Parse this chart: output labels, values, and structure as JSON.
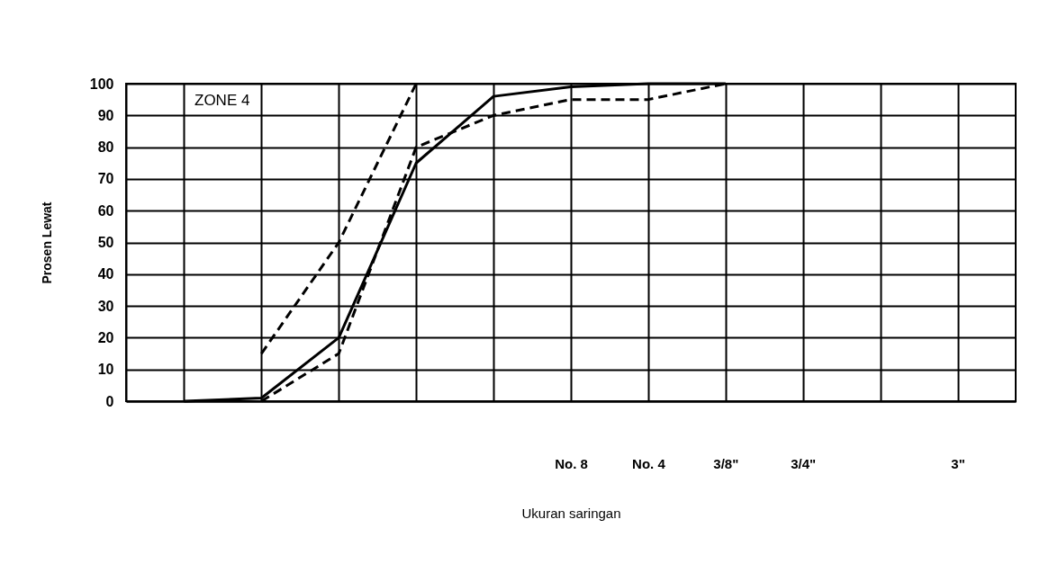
{
  "chart_data": {
    "type": "line",
    "xlabel": "Ukuran saringan",
    "ylabel": "Prosen Lewat",
    "categories": [
      null,
      null,
      null,
      null,
      null,
      "No. 8",
      "No. 4",
      "3/8\"",
      "3/4\"",
      null,
      "3\""
    ],
    "series": [
      {
        "color": "#000000",
        "line_style": "solid",
        "values": [
          0,
          1,
          20,
          75,
          96,
          99,
          100,
          100,
          null,
          null,
          null
        ]
      },
      {
        "color": "#000000",
        "line_style": "dashed",
        "values": [
          null,
          0,
          15,
          80,
          90,
          95,
          95,
          100,
          null,
          null,
          null
        ]
      },
      {
        "color": "#000000",
        "line_style": "dashed",
        "values": [
          null,
          15,
          50,
          100,
          null,
          null,
          null,
          null,
          null,
          null,
          null
        ]
      }
    ],
    "ylim": [
      0,
      100
    ],
    "yticks": [
      0,
      10,
      20,
      30,
      40,
      50,
      60,
      70,
      80,
      90,
      100
    ],
    "grid": true,
    "marker": "none",
    "annotations": [
      "ZONE 4"
    ]
  }
}
